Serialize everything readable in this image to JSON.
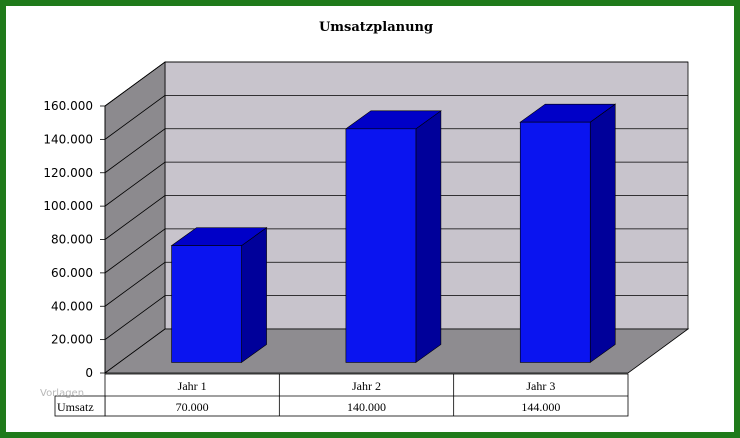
{
  "chart_data": {
    "type": "bar",
    "title": "Umsatzplanung",
    "categories": [
      "Jahr 1",
      "Jahr 2",
      "Jahr 3"
    ],
    "series": [
      {
        "name": "Umsatz",
        "values": [
          70000,
          140000,
          144000
        ]
      }
    ],
    "value_labels": [
      "70.000",
      "140.000",
      "144.000"
    ],
    "ylim": [
      0,
      160000
    ],
    "yticks": [
      0,
      20000,
      40000,
      60000,
      80000,
      100000,
      120000,
      140000,
      160000
    ],
    "ytick_labels": [
      "0",
      "20.000",
      "40.000",
      "60.000",
      "80.000",
      "100.000",
      "120.000",
      "140.000",
      "160.000"
    ],
    "grid": true,
    "three_d": true,
    "data_table": true
  },
  "colors": {
    "frame": "#1f7a1a",
    "wall": "#c8c4cc",
    "side_wall": "#8c8a8e",
    "floor": "#8e8c90",
    "bar_front": "#0a14f0",
    "bar_top": "#0000c8",
    "bar_side": "#00009a"
  },
  "watermark": "Vorlagen"
}
